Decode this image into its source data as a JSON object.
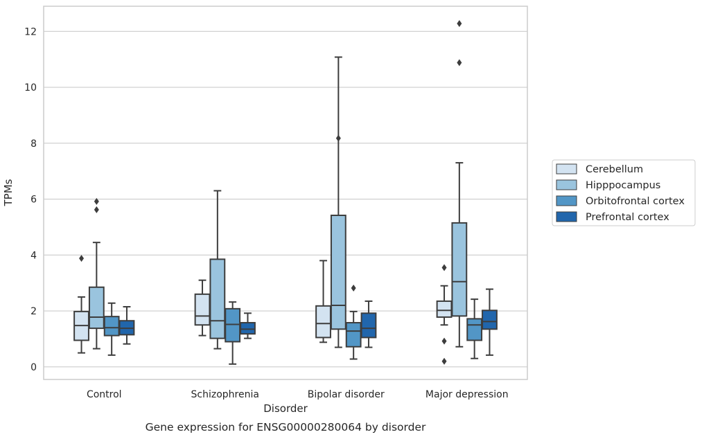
{
  "caption": "Gene expression for ENSG00000280064 by disorder",
  "chart_data": {
    "type": "box",
    "xlabel": "Disorder",
    "ylabel": "TPMs",
    "ylim": [
      -0.45,
      12.9
    ],
    "yticks": [
      0,
      2,
      4,
      6,
      8,
      10,
      12
    ],
    "grid": "horizontal",
    "legend_position": "right",
    "categories": [
      "Control",
      "Schizophrenia",
      "Bipolar disorder",
      "Major depression"
    ],
    "series": [
      {
        "name": "Cerebellum",
        "color": "#d3e3f1",
        "boxes": [
          {
            "min": 0.5,
            "q1": 0.95,
            "median": 1.48,
            "q3": 1.98,
            "max": 2.5,
            "outliers": [
              3.88
            ]
          },
          {
            "min": 1.12,
            "q1": 1.5,
            "median": 1.82,
            "q3": 2.6,
            "max": 3.1,
            "outliers": []
          },
          {
            "min": 0.88,
            "q1": 1.05,
            "median": 1.55,
            "q3": 2.18,
            "max": 3.8,
            "outliers": []
          },
          {
            "min": 1.5,
            "q1": 1.78,
            "median": 2.02,
            "q3": 2.35,
            "max": 2.9,
            "outliers": [
              3.55,
              0.92,
              0.2
            ]
          }
        ]
      },
      {
        "name": "Hipppocampus",
        "color": "#9ac4de",
        "boxes": [
          {
            "min": 0.65,
            "q1": 1.38,
            "median": 1.78,
            "q3": 2.85,
            "max": 4.45,
            "outliers": [
              5.92,
              5.62
            ]
          },
          {
            "min": 0.65,
            "q1": 1.02,
            "median": 1.65,
            "q3": 3.85,
            "max": 6.3,
            "outliers": []
          },
          {
            "min": 0.7,
            "q1": 1.35,
            "median": 2.2,
            "q3": 5.42,
            "max": 11.08,
            "outliers": [
              8.18
            ]
          },
          {
            "min": 0.72,
            "q1": 1.82,
            "median": 3.05,
            "q3": 5.15,
            "max": 7.3,
            "outliers": [
              12.28,
              10.88
            ]
          }
        ]
      },
      {
        "name": "Orbitofrontal cortex",
        "color": "#5296c6",
        "boxes": [
          {
            "min": 0.42,
            "q1": 1.12,
            "median": 1.4,
            "q3": 1.8,
            "max": 2.28,
            "outliers": []
          },
          {
            "min": 0.1,
            "q1": 0.9,
            "median": 1.52,
            "q3": 2.08,
            "max": 2.32,
            "outliers": []
          },
          {
            "min": 0.28,
            "q1": 0.72,
            "median": 1.28,
            "q3": 1.58,
            "max": 1.98,
            "outliers": [
              2.82
            ]
          },
          {
            "min": 0.3,
            "q1": 0.95,
            "median": 1.5,
            "q3": 1.72,
            "max": 2.42,
            "outliers": []
          }
        ]
      },
      {
        "name": "Prefrontal cortex",
        "color": "#2166ac",
        "boxes": [
          {
            "min": 0.82,
            "q1": 1.15,
            "median": 1.38,
            "q3": 1.65,
            "max": 2.15,
            "outliers": []
          },
          {
            "min": 1.02,
            "q1": 1.18,
            "median": 1.35,
            "q3": 1.58,
            "max": 1.92,
            "outliers": []
          },
          {
            "min": 0.7,
            "q1": 1.05,
            "median": 1.38,
            "q3": 1.92,
            "max": 2.35,
            "outliers": []
          },
          {
            "min": 0.42,
            "q1": 1.35,
            "median": 1.62,
            "q3": 2.02,
            "max": 2.78,
            "outliers": []
          }
        ]
      }
    ]
  }
}
